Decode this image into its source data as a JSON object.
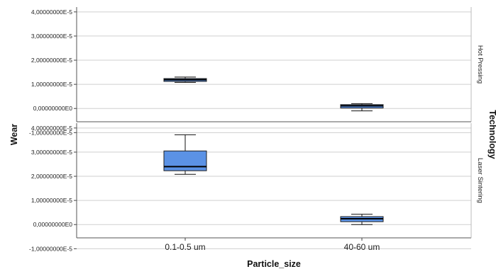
{
  "chart_data": {
    "type": "boxplot",
    "xlabel": "Particle_size",
    "ylabel": "Wear",
    "facet_label": "Technology",
    "categories": [
      "0.1-0.5 um",
      "40-60 um"
    ],
    "ylim": [
      -5.5e-06,
      4.2e-05
    ],
    "y_ticks": [
      {
        "value": -1e-05,
        "label": "-1,00000000E-5"
      },
      {
        "value": 0,
        "label": "0,00000000E0"
      },
      {
        "value": 1e-05,
        "label": "1,00000000E-5"
      },
      {
        "value": 2e-05,
        "label": "2,00000000E-5"
      },
      {
        "value": 3e-05,
        "label": "3,00000000E-5"
      },
      {
        "value": 4e-05,
        "label": "4,00000000E-5"
      }
    ],
    "grid": true,
    "box_color": "#5b92e5",
    "panels": [
      {
        "name": "Hot Pressing",
        "boxes": [
          {
            "category": "0.1-0.5 um",
            "whisker_low": 1.08e-05,
            "q1": 1.12e-05,
            "median": 1.19e-05,
            "q3": 1.24e-05,
            "whisker_high": 1.3e-05
          },
          {
            "category": "40-60 um",
            "whisker_low": -1e-06,
            "q1": 2e-07,
            "median": 1.1e-06,
            "q3": 1.6e-06,
            "whisker_high": 2e-06
          }
        ]
      },
      {
        "name": "Laser Sintering",
        "boxes": [
          {
            "category": "0.1-0.5 um",
            "whisker_low": 2.08e-05,
            "q1": 2.23e-05,
            "median": 2.4e-05,
            "q3": 3.05e-05,
            "whisker_high": 3.72e-05
          },
          {
            "category": "40-60 um",
            "whisker_low": 0.0,
            "q1": 1.2e-06,
            "median": 2.4e-06,
            "q3": 3.3e-06,
            "whisker_high": 4.3e-06
          }
        ]
      }
    ]
  }
}
